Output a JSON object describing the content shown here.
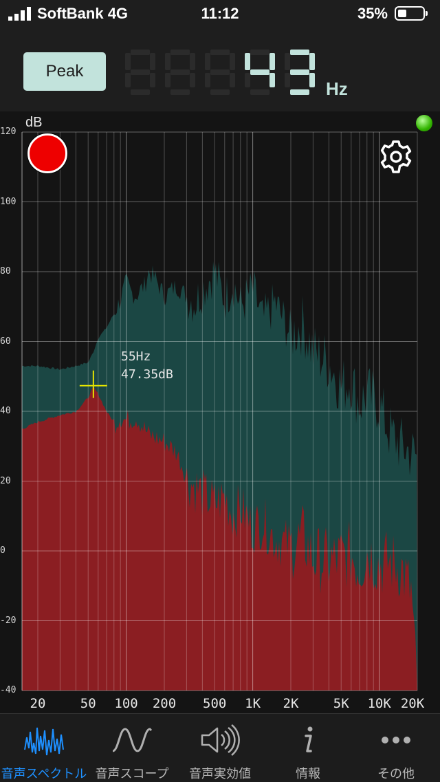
{
  "status_bar": {
    "carrier": "SoftBank",
    "network": "4G",
    "time": "11:12",
    "battery": "35%",
    "battery_level": 0.35
  },
  "header": {
    "mode_button": "Peak",
    "frequency_value": "43",
    "frequency_unit": "Hz"
  },
  "spectrum": {
    "y_unit_label": "dB",
    "y_ticks": [
      "120",
      "100",
      "80",
      "60",
      "40",
      "20",
      "0",
      "-20",
      "-40"
    ],
    "x_ticks": [
      "20",
      "50",
      "100",
      "200",
      "500",
      "1K",
      "2K",
      "5K",
      "10K",
      "20K"
    ],
    "cursor": {
      "frequency": "55Hz",
      "level": "47.35dB"
    }
  },
  "chart_data": {
    "type": "area",
    "xscale": "log",
    "xlim": [
      15,
      20000
    ],
    "ylim": [
      -40,
      120
    ],
    "ylabel": "dB",
    "peak_hold_series": {
      "x": [
        15,
        20,
        30,
        40,
        50,
        55,
        60,
        70,
        80,
        90,
        100,
        110,
        120,
        130,
        140,
        150,
        170,
        200,
        250,
        300,
        350,
        400,
        500,
        600,
        700,
        800,
        1000,
        1200,
        1500,
        2000,
        2500,
        3000,
        4000,
        5000,
        6000,
        7000,
        8000,
        10000,
        12000,
        15000,
        18000,
        20000
      ],
      "y": [
        53,
        53,
        52,
        53,
        54,
        57,
        61,
        64,
        68,
        72,
        77,
        74,
        73,
        75,
        76,
        80,
        78,
        73,
        76,
        73,
        71,
        75,
        80,
        72,
        77,
        70,
        75,
        66,
        71,
        62,
        65,
        57,
        54,
        47,
        49,
        42,
        45,
        42,
        34,
        30,
        28,
        27
      ]
    },
    "current_series": {
      "x": [
        15,
        20,
        30,
        40,
        50,
        55,
        60,
        70,
        80,
        90,
        100,
        120,
        150,
        200,
        250,
        300,
        400,
        500,
        600,
        700,
        800,
        1000,
        1200,
        1500,
        2000,
        2500,
        3000,
        4000,
        5000,
        6000,
        7000,
        8000,
        10000,
        12000,
        15000,
        18000,
        20000
      ],
      "y": [
        35,
        37,
        39,
        40,
        44,
        47,
        45,
        40,
        37,
        39,
        38,
        39,
        34,
        32,
        29,
        22,
        18,
        15,
        17,
        12,
        14,
        8,
        10,
        5,
        3,
        6,
        0,
        -1,
        0,
        1,
        -3,
        2,
        -2,
        -1,
        -3,
        -10,
        -40
      ]
    },
    "cursor": {
      "x": 55,
      "y": 47.35
    },
    "grid": true
  },
  "tabs": [
    {
      "label": "音声スペクトル",
      "icon": "spectrum-icon",
      "active": true
    },
    {
      "label": "音声スコープ",
      "icon": "scope-wave-icon",
      "active": false
    },
    {
      "label": "音声実効値",
      "icon": "speaker-icon",
      "active": false
    },
    {
      "label": "情報",
      "icon": "info-icon",
      "active": false
    },
    {
      "label": "その他",
      "icon": "more-icon",
      "active": false
    }
  ],
  "colors": {
    "peak_fill": "#1b4744",
    "current_fill": "#8b1e22",
    "accent": "#1e90ff",
    "display": "#c2e3dc",
    "cursor": "#e6e600"
  }
}
